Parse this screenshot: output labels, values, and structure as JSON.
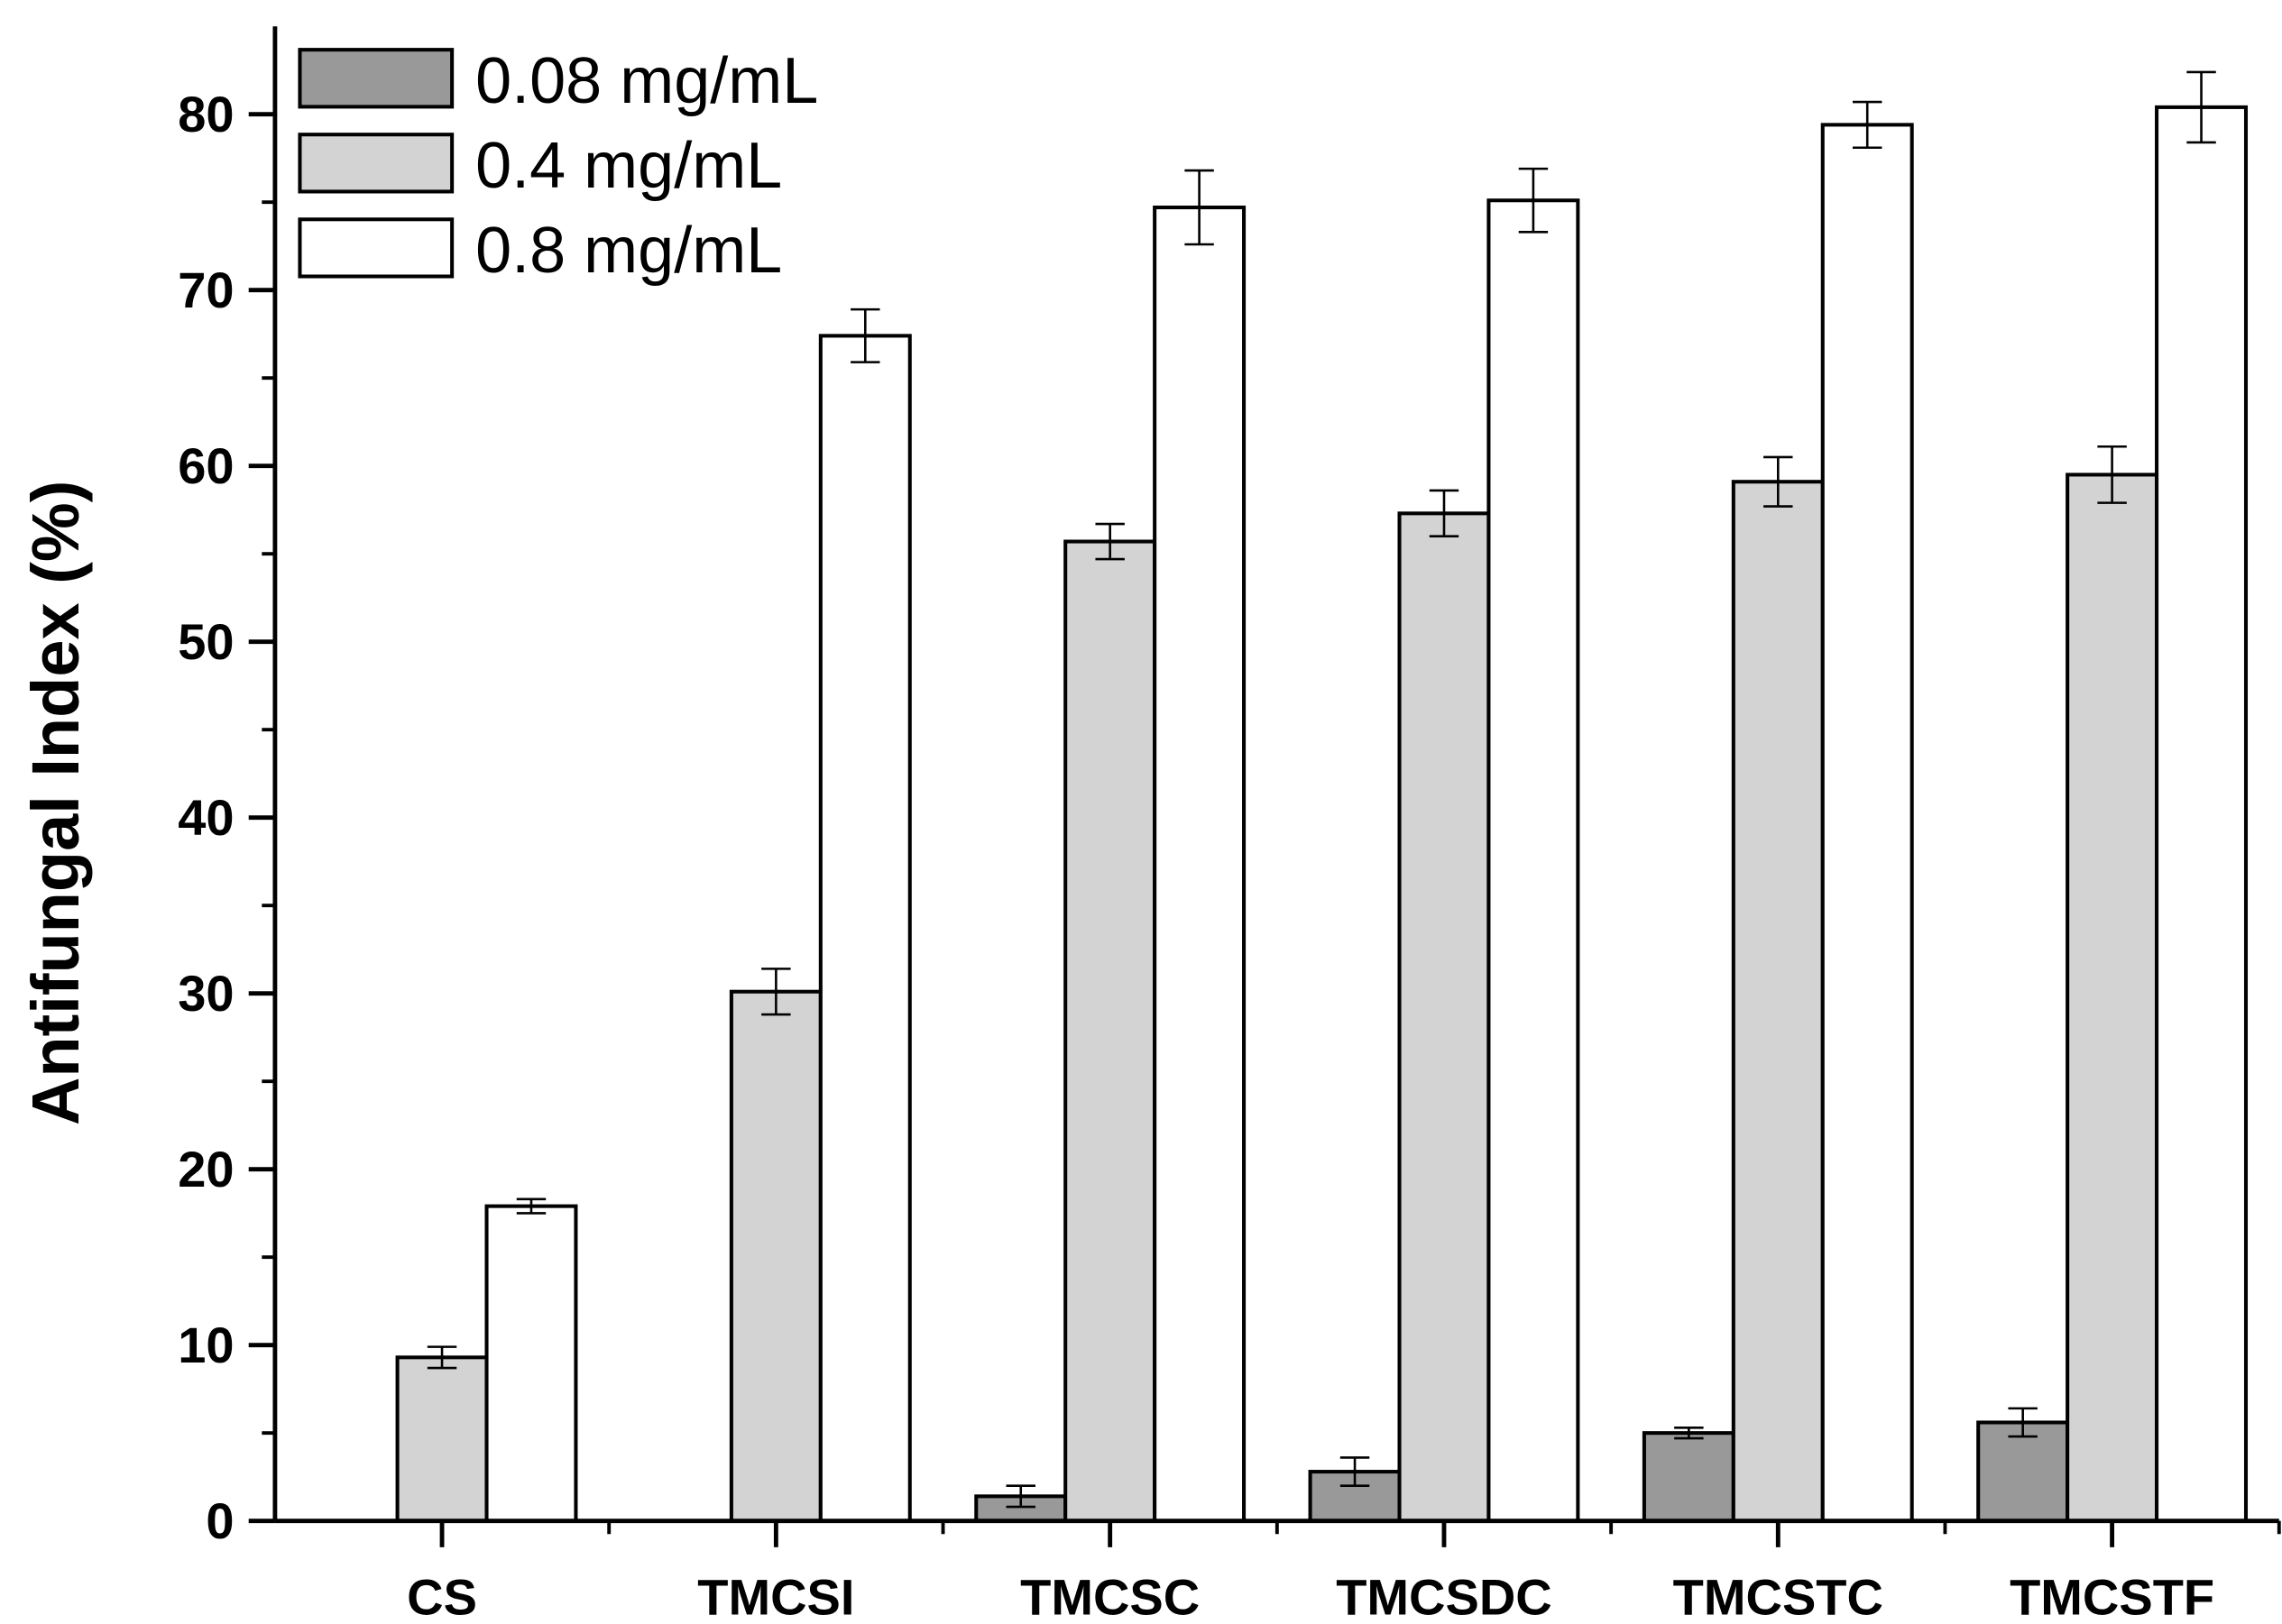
{
  "chart_data": {
    "type": "bar",
    "title": "",
    "xlabel": "",
    "ylabel": "Antifungal Index (%)",
    "ylim": [
      0,
      85
    ],
    "yticks": [
      0,
      10,
      20,
      30,
      40,
      50,
      60,
      70,
      80
    ],
    "categories": [
      "CS",
      "TMCSI",
      "TMCSC",
      "TMCSDC",
      "TMCSTC",
      "TMCSTF"
    ],
    "legend_position": "top-left",
    "series": [
      {
        "name": "0.08 mg/mL",
        "color": "#999999",
        "values": [
          null,
          null,
          1.4,
          2.8,
          5.0,
          5.6
        ],
        "errors": [
          null,
          null,
          0.6,
          0.8,
          0.3,
          0.8
        ]
      },
      {
        "name": "0.4 mg/mL",
        "color": "#d3d3d3",
        "values": [
          9.3,
          30.1,
          55.7,
          57.3,
          59.1,
          59.5
        ],
        "errors": [
          0.6,
          1.3,
          1.0,
          1.3,
          1.4,
          1.6
        ]
      },
      {
        "name": "0.8 mg/mL",
        "color": "#ffffff",
        "values": [
          17.9,
          67.4,
          74.7,
          75.1,
          79.4,
          80.4
        ],
        "errors": [
          0.4,
          1.5,
          2.1,
          1.8,
          1.3,
          2.0
        ]
      }
    ]
  }
}
